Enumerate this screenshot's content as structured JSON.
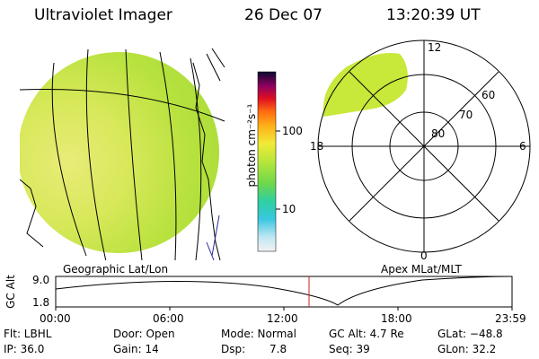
{
  "header": {
    "instrument": "Ultraviolet Imager",
    "date": "26 Dec 07",
    "time": "13:20:39 UT"
  },
  "colorbar": {
    "unit_label": "photon cm⁻²s⁻¹",
    "tick_100": "100",
    "tick_10": "10"
  },
  "left_panel": {
    "caption": "Geographic Lat/Lon"
  },
  "right_panel": {
    "caption": "Apex MLat/MLT",
    "mlt_labels": {
      "top": "12",
      "left": "18",
      "right": "6",
      "bottom": "0"
    },
    "lat_labels": [
      "60",
      "70",
      "80"
    ]
  },
  "altitude_plot": {
    "label": "GC Alt",
    "ymax": "9.0",
    "ymin": "1.8",
    "time_ticks": [
      "00:00",
      "06:00",
      "12:00",
      "18:00",
      "23:59"
    ],
    "cursor_time_hours": 13.34
  },
  "status": {
    "row1": {
      "filter": "Flt: LBHL",
      "door": "Door: Open",
      "mode": "Mode: Normal",
      "gc_alt": "GC Alt: 4.7 Re",
      "glat": "GLat: −48.8"
    },
    "row2": {
      "ip": "IP: 36.0",
      "gain": "Gain: 14",
      "dsp_label": "Dsp:",
      "dsp_value": "7.8",
      "seq": "Seq: 39",
      "glon": "GLon: 32.2"
    }
  },
  "colors": {
    "cursor": "#cc2222",
    "auroral_fill": "#c8e83a"
  }
}
